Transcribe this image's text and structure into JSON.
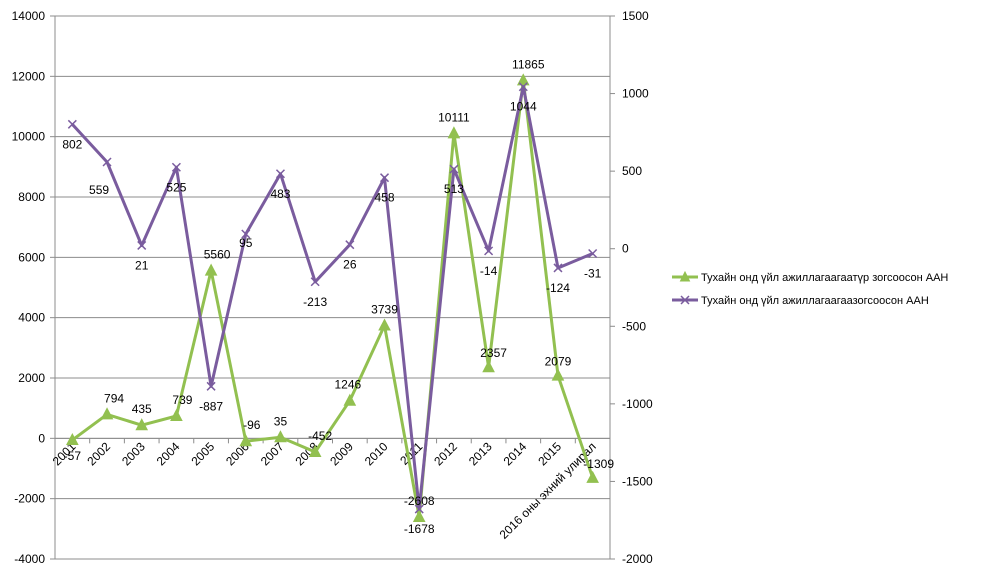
{
  "chart_data": {
    "type": "line",
    "title": "",
    "xlabel": "",
    "ylabel": "",
    "categories": [
      "2001",
      "2002",
      "2003",
      "2004",
      "2005",
      "2006",
      "2007",
      "2008",
      "2009",
      "2010",
      "2011",
      "2012",
      "2013",
      "2014",
      "2015",
      "2016 оны эхний улирал"
    ],
    "ylim_left": [
      -4000,
      14000
    ],
    "yticks_left": [
      -4000,
      -2000,
      0,
      2000,
      4000,
      6000,
      8000,
      10000,
      12000,
      14000
    ],
    "ylim_right": [
      -2000,
      1500
    ],
    "yticks_right": [
      -2000,
      -1500,
      -1000,
      -500,
      0,
      500,
      1000,
      1500
    ],
    "grid": true,
    "legend_position": "right",
    "series": [
      {
        "name": "Тухайн онд үйл ажиллагаагаатүр зогсоосон ААН",
        "axis": "left",
        "color": "#92c050",
        "marker": "triangle",
        "values": [
          -57,
          794,
          435,
          739,
          5560,
          -96,
          35,
          -452,
          1246,
          3739,
          -2608,
          10111,
          2357,
          11865,
          2079,
          -1309
        ]
      },
      {
        "name": "Тухайн онд үйл ажиллагаагаазогсоосон ААН",
        "axis": "right",
        "color": "#7a5c9e",
        "marker": "x",
        "values": [
          802,
          559,
          21,
          525,
          -887,
          95,
          483,
          -213,
          26,
          458,
          -1678,
          513,
          -14,
          1044,
          -124,
          -31
        ]
      }
    ]
  }
}
